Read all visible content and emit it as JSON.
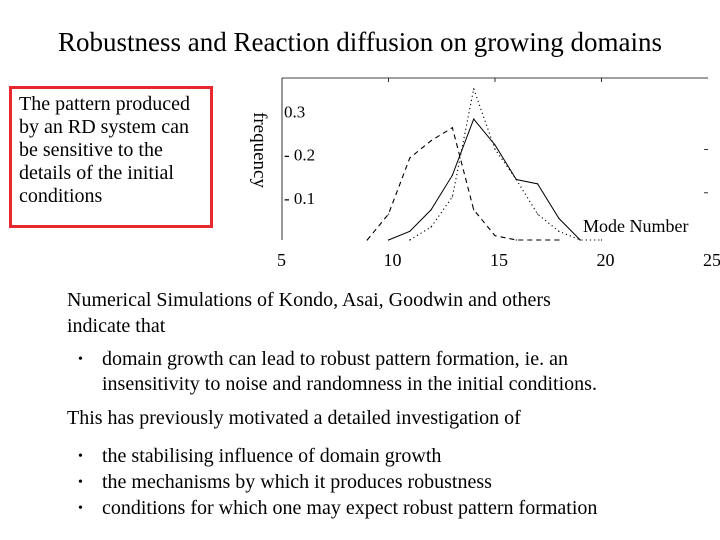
{
  "slide": {
    "title": "Robustness and Reaction diffusion on growing domains",
    "callout": {
      "lines": [
        "The pattern produced",
        "by an RD system can",
        "be sensitive to the",
        "details of the initial",
        "conditions"
      ],
      "border_color": "#e8282e"
    },
    "intro": [
      "Numerical Simulations of Kondo, Asai, Goodwin and others",
      "indicate that"
    ],
    "bullet1": [
      "domain growth can lead to robust pattern formation, ie. an",
      "insensitivity to noise and randomness in the initial conditions."
    ],
    "motivation": "This has previously motivated a detailed investigation of",
    "bullets2": [
      "the stabilising influence of domain growth",
      "the mechanisms by which it produces robustness",
      "conditions for which one may expect robust pattern formation"
    ],
    "bullet_glyph": "•"
  },
  "chart_data": {
    "type": "line",
    "title": "",
    "xlabel": "Mode Number",
    "ylabel": "frequency",
    "xlim": [
      5,
      25
    ],
    "ylim": [
      0,
      0.375
    ],
    "x_ticks": [
      "5",
      "10",
      "15",
      "20",
      "25"
    ],
    "y_ticks": [
      "0.3",
      "- 0.2",
      "- 0.1"
    ],
    "y_tick_values": [
      0.3,
      0.2,
      0.1
    ],
    "series": [
      {
        "name": "solid",
        "style": "solid",
        "x": [
          10,
          11,
          12,
          13,
          14,
          15,
          16,
          17,
          18,
          19
        ],
        "y": [
          0.0,
          0.02,
          0.07,
          0.15,
          0.28,
          0.22,
          0.14,
          0.13,
          0.05,
          0.0
        ]
      },
      {
        "name": "dashed",
        "style": "dashed",
        "x": [
          9,
          10,
          11,
          12,
          13,
          14,
          15,
          16,
          17,
          18
        ],
        "y": [
          0.0,
          0.06,
          0.19,
          0.23,
          0.26,
          0.07,
          0.01,
          0.0,
          0.0,
          0.0
        ]
      },
      {
        "name": "dotted",
        "style": "dotted",
        "x": [
          11,
          12,
          13,
          14,
          15,
          16,
          17,
          18,
          19,
          20
        ],
        "y": [
          0.0,
          0.03,
          0.1,
          0.35,
          0.21,
          0.14,
          0.06,
          0.02,
          0.0,
          0.0
        ]
      }
    ]
  }
}
